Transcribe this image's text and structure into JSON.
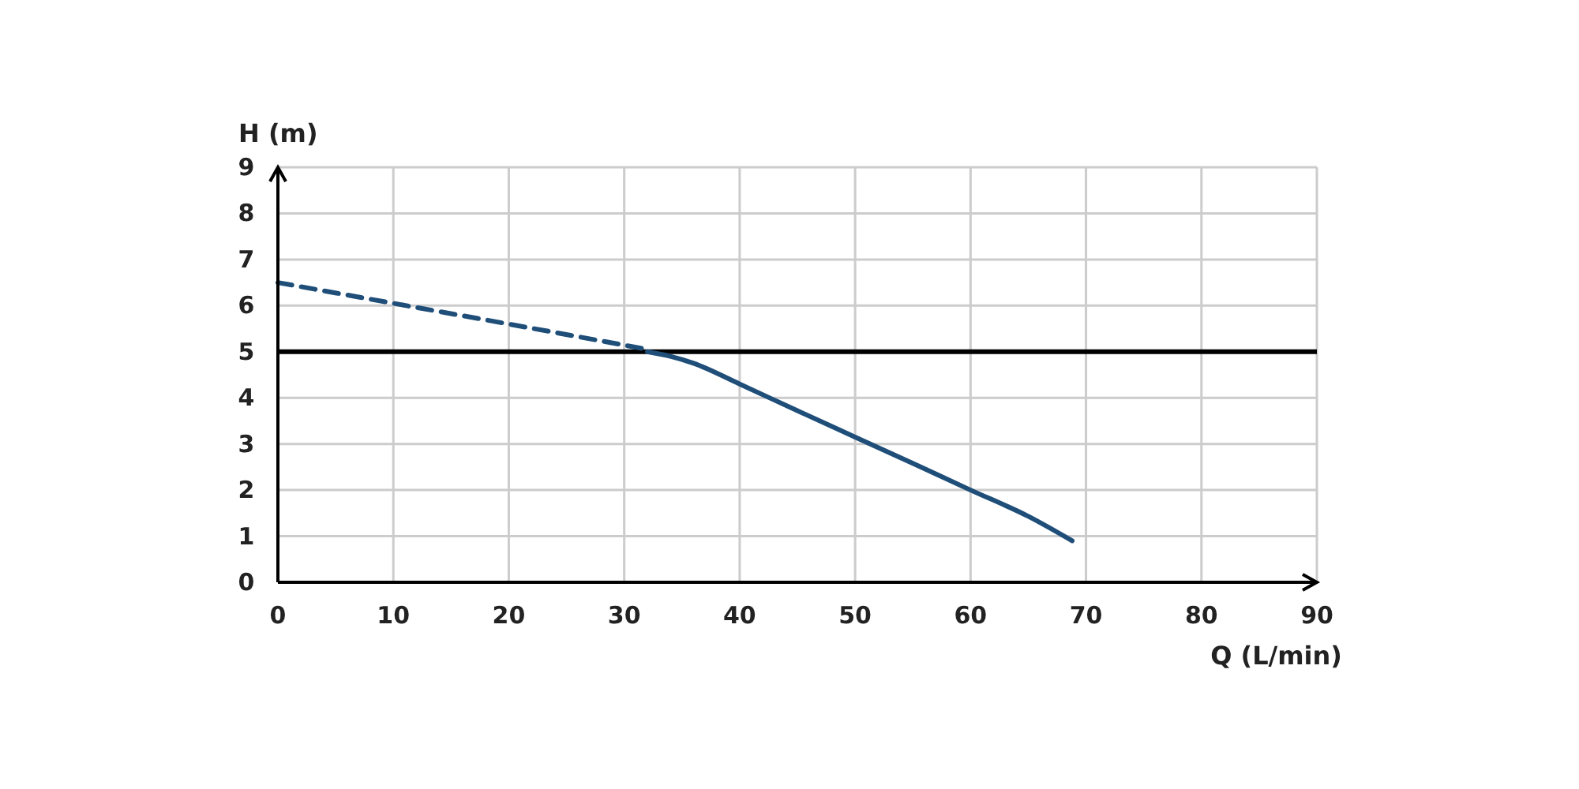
{
  "chart_data": {
    "type": "line",
    "xlabel": "Q (L/min)",
    "ylabel": "H (m)",
    "xlim": [
      0,
      90
    ],
    "xticks": [
      0,
      10,
      20,
      30,
      40,
      50,
      60,
      70,
      80,
      90
    ],
    "ylim": [
      0,
      9
    ],
    "yticks": [
      0,
      1,
      2,
      3,
      4,
      5,
      6,
      7,
      8,
      9
    ],
    "grid": true,
    "marker": "none",
    "ref_lines": [
      {
        "axis": "y",
        "value": 5,
        "color": "#000000",
        "line_style": "solid"
      }
    ],
    "series": [
      {
        "color": "#1f4e79",
        "line_style": "dashed",
        "x": [
          0,
          10,
          20,
          32
        ],
        "values": [
          6.5,
          6.05,
          5.6,
          5.05
        ]
      },
      {
        "color": "#1f4e79",
        "line_style": "solid",
        "x": [
          32,
          34,
          36,
          40,
          45,
          50,
          55,
          60,
          65,
          68.8
        ],
        "values": [
          5.0,
          4.9,
          4.75,
          4.3,
          3.72,
          3.15,
          2.58,
          2.0,
          1.43,
          0.9
        ]
      }
    ]
  }
}
